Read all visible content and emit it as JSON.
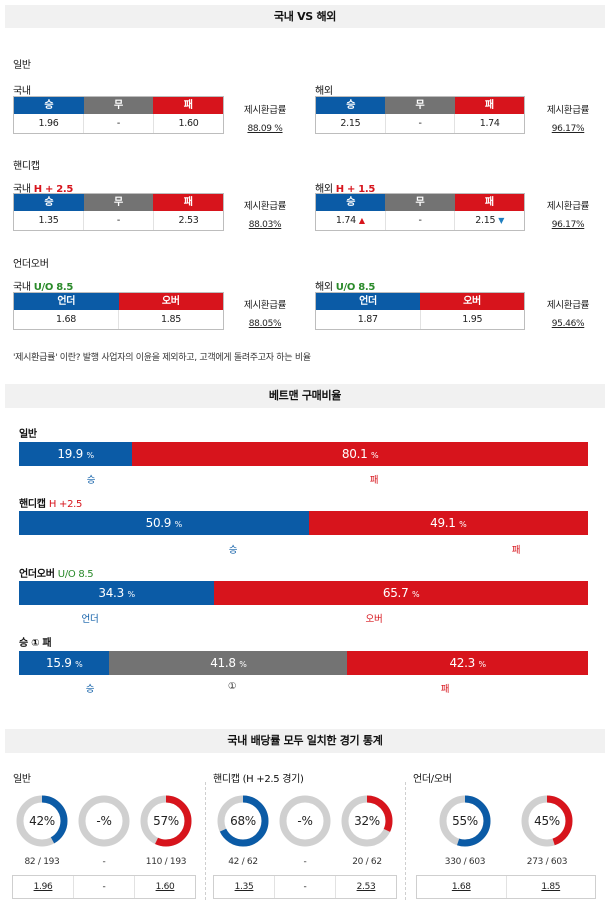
{
  "section1": {
    "title": "국내 VS 해외",
    "note": "'제시환급률' 이란? 발행 사업자의 이윤을 제외하고, 고객에게 돌려주고자 하는 비율",
    "general": {
      "label": "일반",
      "domestic": {
        "name": "국내",
        "headers": [
          "승",
          "무",
          "패"
        ],
        "values": [
          "1.96",
          "-",
          "1.60"
        ],
        "refund_label": "제시환급률",
        "refund": "88.09 %"
      },
      "overseas": {
        "name": "해외",
        "headers": [
          "승",
          "무",
          "패"
        ],
        "values": [
          "2.15",
          "-",
          "1.74"
        ],
        "refund_label": "제시환급률",
        "refund": "96.17%"
      }
    },
    "handicap": {
      "label": "핸디캡",
      "domestic": {
        "name": "국내",
        "tag": "H + 2.5",
        "headers": [
          "승",
          "무",
          "패"
        ],
        "values": [
          "1.35",
          "-",
          "2.53"
        ],
        "refund_label": "제시환급률",
        "refund": "88.03%"
      },
      "overseas": {
        "name": "해외",
        "tag": "H + 1.5",
        "headers": [
          "승",
          "무",
          "패"
        ],
        "values": [
          "1.74",
          "-",
          "2.15"
        ],
        "refund_label": "제시환급률",
        "refund": "96.17%",
        "win_arrow": "▲",
        "lose_arrow": "▼"
      }
    },
    "underover": {
      "label": "언더오버",
      "domestic": {
        "name": "국내",
        "tag": "U/O 8.5",
        "headers": [
          "언더",
          "오버"
        ],
        "values": [
          "1.68",
          "1.85"
        ],
        "refund_label": "제시환급률",
        "refund": "88.05%"
      },
      "overseas": {
        "name": "해외",
        "tag": "U/O 8.5",
        "headers": [
          "언더",
          "오버"
        ],
        "values": [
          "1.87",
          "1.95"
        ],
        "refund_label": "제시환급률",
        "refund": "95.46%"
      }
    }
  },
  "section2": {
    "title": "베트맨 구매비율",
    "unit": "%",
    "general": {
      "label": "일반",
      "tag": "",
      "parts": [
        {
          "value": "19.9",
          "label": "승"
        },
        {
          "value": "80.1",
          "label": "패"
        }
      ]
    },
    "handicap": {
      "label": "핸디캡",
      "tag": "H +2.5",
      "parts": [
        {
          "value": "50.9",
          "label": "승"
        },
        {
          "value": "49.1",
          "label": "패"
        }
      ]
    },
    "underover": {
      "label": "언더오버",
      "tag": "U/O 8.5",
      "parts": [
        {
          "value": "34.3",
          "label": "언더"
        },
        {
          "value": "65.7",
          "label": "오버"
        }
      ]
    },
    "wdl": {
      "label": "승 ① 패",
      "parts": [
        {
          "value": "15.9",
          "label": "승"
        },
        {
          "value": "41.8",
          "label": "①"
        },
        {
          "value": "42.3",
          "label": "패"
        }
      ]
    }
  },
  "section3": {
    "title": "국내 배당률 모두 일치한 경기 통계",
    "groups": [
      {
        "label": "일반",
        "items": [
          {
            "pct_text": "42%",
            "pct": 42,
            "color": "#0b5ba6",
            "count": "82 / 193",
            "odds": "1.96"
          },
          {
            "pct_text": "-%",
            "pct": 0,
            "color": "#cccccc",
            "count": "-",
            "odds": "-"
          },
          {
            "pct_text": "57%",
            "pct": 57,
            "color": "#d7141c",
            "count": "110 / 193",
            "odds": "1.60"
          }
        ]
      },
      {
        "label": "핸디캡 (H +2.5 경기)",
        "items": [
          {
            "pct_text": "68%",
            "pct": 68,
            "color": "#0b5ba6",
            "count": "42 / 62",
            "odds": "1.35"
          },
          {
            "pct_text": "-%",
            "pct": 0,
            "color": "#cccccc",
            "count": "-",
            "odds": "-"
          },
          {
            "pct_text": "32%",
            "pct": 32,
            "color": "#d7141c",
            "count": "20 / 62",
            "odds": "2.53"
          }
        ]
      },
      {
        "label": "언더/오버",
        "items": [
          {
            "pct_text": "55%",
            "pct": 55,
            "color": "#0b5ba6",
            "count": "330 / 603",
            "odds": "1.68"
          },
          {
            "pct_text": "45%",
            "pct": 45,
            "color": "#d7141c",
            "count": "273 / 603",
            "odds": "1.85"
          }
        ]
      }
    ]
  },
  "colors": {
    "blue": "#0b5ba6",
    "red": "#d7141c",
    "gray": "#737373",
    "green": "#2a8a2a"
  }
}
